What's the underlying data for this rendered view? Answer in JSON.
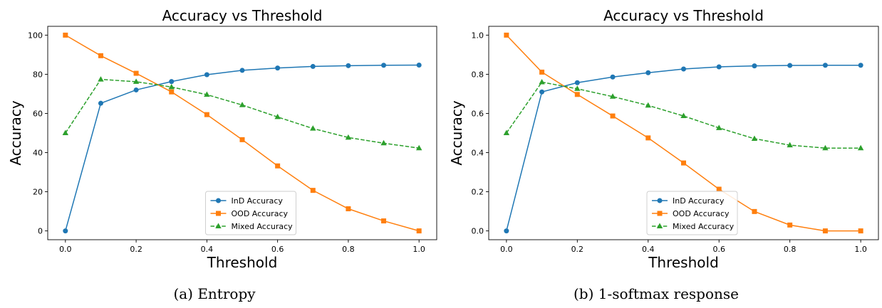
{
  "colors": {
    "ind": "#1f77b4",
    "ood": "#ff7f0e",
    "mixed": "#2ca02c"
  },
  "chart_data": [
    {
      "type": "line",
      "title": "Accuracy vs Threshold",
      "xlabel": "Threshold",
      "ylabel": "Accuracy",
      "caption": "(a) Entropy",
      "xlim": [
        -0.05,
        1.05
      ],
      "ylim": [
        -4.5,
        104.5
      ],
      "xticks": [
        0.0,
        0.2,
        0.4,
        0.6,
        0.8,
        1.0
      ],
      "xtick_labels": [
        "0.0",
        "0.2",
        "0.4",
        "0.6",
        "0.8",
        "1.0"
      ],
      "yticks": [
        0,
        20,
        40,
        60,
        80,
        100
      ],
      "ytick_labels": [
        "0",
        "20",
        "40",
        "60",
        "80",
        "100"
      ],
      "legend_position": "lower-center",
      "x": [
        0.0,
        0.1,
        0.2,
        0.3,
        0.4,
        0.5,
        0.6,
        0.7,
        0.8,
        0.9,
        1.0
      ],
      "series": [
        {
          "name": "InD Accuracy",
          "color_key": "ind",
          "marker": "circle",
          "dashed": false,
          "values": [
            0,
            65.2,
            72.0,
            76.3,
            79.8,
            82.0,
            83.2,
            84.0,
            84.4,
            84.6,
            84.7
          ]
        },
        {
          "name": "OOD Accuracy",
          "color_key": "ood",
          "marker": "square",
          "dashed": false,
          "values": [
            100,
            89.5,
            80.5,
            71.0,
            59.4,
            46.6,
            33.2,
            20.7,
            11.3,
            5.1,
            0
          ]
        },
        {
          "name": "Mixed Accuracy",
          "color_key": "mixed",
          "marker": "triangle",
          "dashed": true,
          "values": [
            50,
            77.4,
            76.2,
            73.5,
            69.6,
            64.3,
            58.2,
            52.3,
            47.7,
            44.8,
            42.3
          ]
        }
      ]
    },
    {
      "type": "line",
      "title": "Accuracy vs Threshold",
      "xlabel": "Threshold",
      "ylabel": "Accuracy",
      "caption": "(b) 1-softmax response",
      "xlim": [
        -0.05,
        1.05
      ],
      "ylim": [
        -0.045,
        1.045
      ],
      "xticks": [
        0.0,
        0.2,
        0.4,
        0.6,
        0.8,
        1.0
      ],
      "xtick_labels": [
        "0.0",
        "0.2",
        "0.4",
        "0.6",
        "0.8",
        "1.0"
      ],
      "yticks": [
        0.0,
        0.2,
        0.4,
        0.6,
        0.8,
        1.0
      ],
      "ytick_labels": [
        "0.0",
        "0.2",
        "0.4",
        "0.6",
        "0.8",
        "1.0"
      ],
      "legend_position": "lower-center",
      "x": [
        0.0,
        0.1,
        0.2,
        0.3,
        0.4,
        0.5,
        0.6,
        0.7,
        0.8,
        0.9,
        1.0
      ],
      "series": [
        {
          "name": "InD Accuracy",
          "color_key": "ind",
          "marker": "circle",
          "dashed": false,
          "values": [
            0,
            0.71,
            0.757,
            0.786,
            0.808,
            0.827,
            0.838,
            0.843,
            0.845,
            0.846,
            0.846
          ]
        },
        {
          "name": "OOD Accuracy",
          "color_key": "ood",
          "marker": "square",
          "dashed": false,
          "values": [
            1.0,
            0.811,
            0.697,
            0.587,
            0.475,
            0.347,
            0.213,
            0.099,
            0.03,
            0.0,
            0.0
          ]
        },
        {
          "name": "Mixed Accuracy",
          "color_key": "mixed",
          "marker": "triangle",
          "dashed": true,
          "values": [
            0.5,
            0.76,
            0.726,
            0.686,
            0.641,
            0.587,
            0.526,
            0.471,
            0.438,
            0.423,
            0.423
          ]
        }
      ]
    }
  ]
}
